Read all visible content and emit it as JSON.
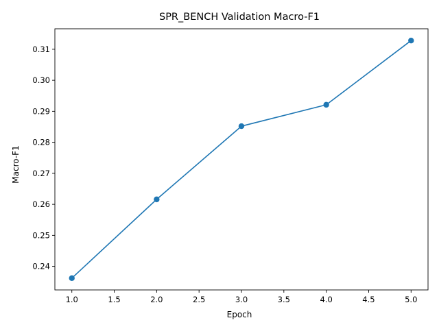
{
  "chart_data": {
    "type": "line",
    "title": "SPR_BENCH Validation Macro-F1",
    "xlabel": "Epoch",
    "ylabel": "Macro-F1",
    "x": [
      1,
      2,
      3,
      4,
      5
    ],
    "series": [
      {
        "values": [
          0.2362,
          0.2616,
          0.2852,
          0.2921,
          0.3128
        ]
      }
    ],
    "xlim": [
      0.8,
      5.2
    ],
    "ylim": [
      0.2324,
      0.3166
    ],
    "xticks": [
      1.0,
      1.5,
      2.0,
      2.5,
      3.0,
      3.5,
      4.0,
      4.5,
      5.0
    ],
    "xtick_labels": [
      "1.0",
      "1.5",
      "2.0",
      "2.5",
      "3.0",
      "3.5",
      "4.0",
      "4.5",
      "5.0"
    ],
    "yticks": [
      0.24,
      0.25,
      0.26,
      0.27,
      0.28,
      0.29,
      0.3,
      0.31
    ],
    "ytick_labels": [
      "0.24",
      "0.25",
      "0.26",
      "0.27",
      "0.28",
      "0.29",
      "0.30",
      "0.31"
    ],
    "grid": false,
    "legend": "none",
    "marker": "circle",
    "colors": {
      "line": "#1f77b4",
      "marker": "#1f77b4",
      "axes": "#000000"
    }
  }
}
